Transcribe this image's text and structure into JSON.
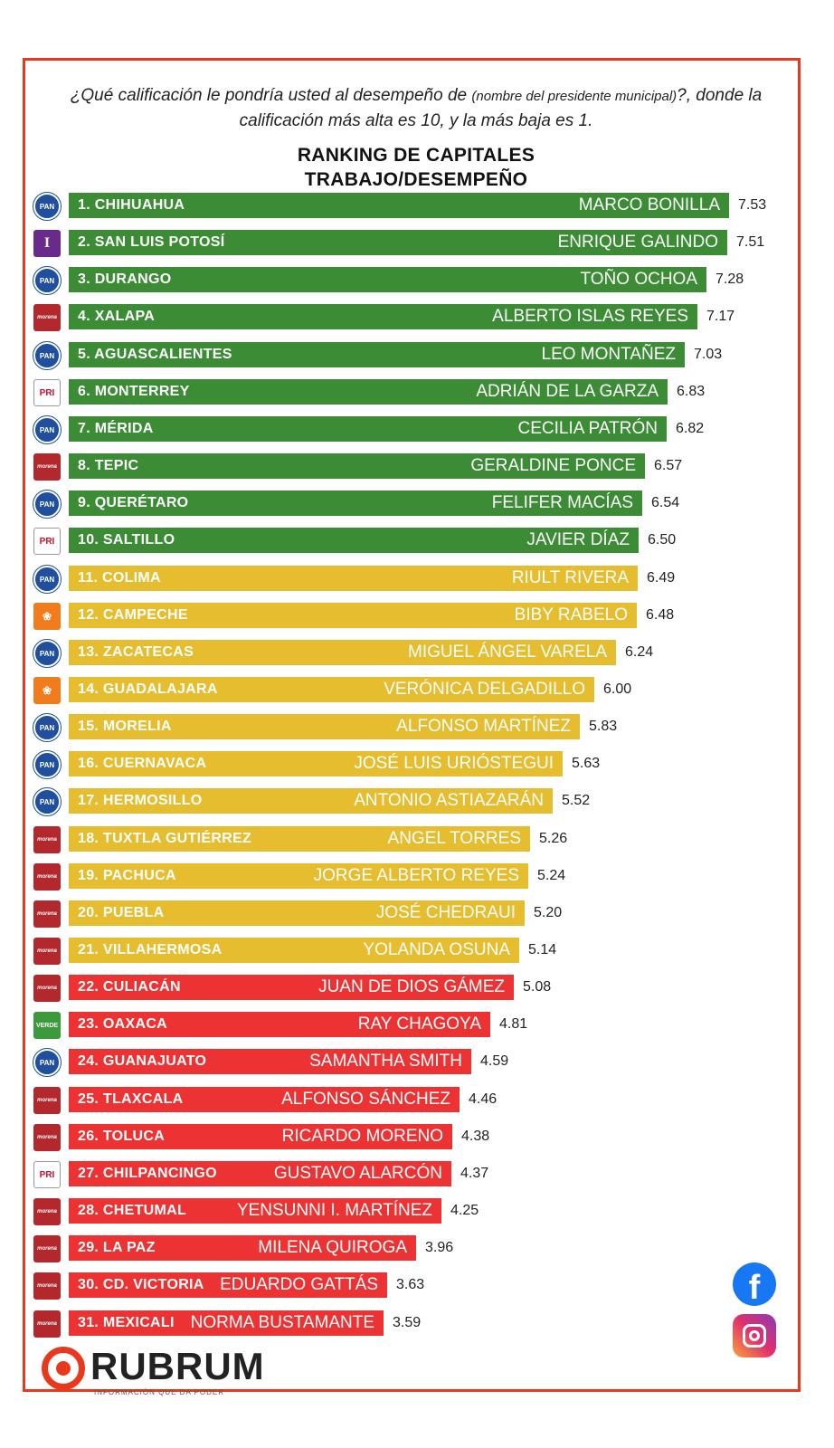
{
  "question": {
    "part1": "¿Qué calificación le pondría usted al desempeño de ",
    "part2": "(nombre del presidente municipal)",
    "part3": "?, donde la calificación más alta es 10, y la más baja es 1."
  },
  "title_line1": "RANKING DE CAPITALES",
  "title_line2": "TRABAJO/DESEMPEÑO",
  "colors": {
    "green": "#3b8c35",
    "yellow": "#e6bd2e",
    "red": "#ec3232",
    "frame": "#e8391f"
  },
  "chart_data": {
    "type": "bar",
    "orientation": "horizontal",
    "title": "RANKING DE CAPITALES TRABAJO/DESEMPEÑO",
    "xlim": [
      0,
      10
    ],
    "rows": [
      {
        "label": "1. CHIHUAHUA",
        "mayor": "MARCO BONILLA",
        "value": 7.53,
        "display": "7.53",
        "party": "PAN",
        "color": "green"
      },
      {
        "label": "2. SAN LUIS POTOSÍ",
        "mayor": "ENRIQUE GALINDO",
        "value": 7.51,
        "display": "7.51",
        "party": "I",
        "color": "green"
      },
      {
        "label": "3. DURANGO",
        "mayor": "TOÑO OCHOA",
        "value": 7.28,
        "display": "7.28",
        "party": "PAN",
        "color": "green"
      },
      {
        "label": "4. XALAPA",
        "mayor": "ALBERTO ISLAS REYES",
        "value": 7.17,
        "display": "7.17",
        "party": "morena",
        "color": "green"
      },
      {
        "label": "5. AGUASCALIENTES",
        "mayor": "LEO MONTAÑEZ",
        "value": 7.03,
        "display": "7.03",
        "party": "PAN",
        "color": "green"
      },
      {
        "label": "6. MONTERREY",
        "mayor": "ADRIÁN DE LA GARZA",
        "value": 6.83,
        "display": "6.83",
        "party": "PRI",
        "color": "green"
      },
      {
        "label": "7. MÉRIDA",
        "mayor": "CECILIA PATRÓN",
        "value": 6.82,
        "display": "6.82",
        "party": "PAN",
        "color": "green"
      },
      {
        "label": "8. TEPIC",
        "mayor": "GERALDINE PONCE",
        "value": 6.57,
        "display": "6.57",
        "party": "morena",
        "color": "green"
      },
      {
        "label": "9. QUERÉTARO",
        "mayor": "FELIFER MACÍAS",
        "value": 6.54,
        "display": "6.54",
        "party": "PAN",
        "color": "green"
      },
      {
        "label": "10. SALTILLO",
        "mayor": "JAVIER DÍAZ",
        "value": 6.5,
        "display": "6.50",
        "party": "PRI",
        "color": "green"
      },
      {
        "label": "11. COLIMA",
        "mayor": "RIULT RIVERA",
        "value": 6.49,
        "display": "6.49",
        "party": "PAN",
        "color": "yellow"
      },
      {
        "label": "12. CAMPECHE",
        "mayor": "BIBY RABELO",
        "value": 6.48,
        "display": "6.48",
        "party": "MC",
        "color": "yellow"
      },
      {
        "label": "13. ZACATECAS",
        "mayor": "MIGUEL ÁNGEL VARELA",
        "value": 6.24,
        "display": "6.24",
        "party": "PAN",
        "color": "yellow"
      },
      {
        "label": "14. GUADALAJARA",
        "mayor": "VERÓNICA DELGADILLO",
        "value": 6.0,
        "display": "6.00",
        "party": "MC",
        "color": "yellow"
      },
      {
        "label": "15. MORELIA",
        "mayor": "ALFONSO MARTÍNEZ",
        "value": 5.83,
        "display": "5.83",
        "party": "PAN",
        "color": "yellow"
      },
      {
        "label": "16. CUERNAVACA",
        "mayor": "JOSÉ LUIS URIÓSTEGUI",
        "value": 5.63,
        "display": "5.63",
        "party": "PAN",
        "color": "yellow"
      },
      {
        "label": "17. HERMOSILLO",
        "mayor": "ANTONIO ASTIAZARÁN",
        "value": 5.52,
        "display": "5.52",
        "party": "PAN",
        "color": "yellow"
      },
      {
        "label": "18. TUXTLA GUTIÉRREZ",
        "mayor": "ANGEL TORRES",
        "value": 5.26,
        "display": "5.26",
        "party": "morena",
        "color": "yellow"
      },
      {
        "label": "19. PACHUCA",
        "mayor": "JORGE ALBERTO REYES",
        "value": 5.24,
        "display": "5.24",
        "party": "morena",
        "color": "yellow"
      },
      {
        "label": "20. PUEBLA",
        "mayor": "JOSÉ CHEDRAUI",
        "value": 5.2,
        "display": "5.20",
        "party": "morena",
        "color": "yellow"
      },
      {
        "label": "21. VILLAHERMOSA",
        "mayor": "YOLANDA OSUNA",
        "value": 5.14,
        "display": "5.14",
        "party": "morena",
        "color": "yellow"
      },
      {
        "label": "22. CULIACÁN",
        "mayor": "JUAN DE DIOS GÁMEZ",
        "value": 5.08,
        "display": "5.08",
        "party": "morena",
        "color": "red"
      },
      {
        "label": "23. OAXACA",
        "mayor": "RAY CHAGOYA",
        "value": 4.81,
        "display": "4.81",
        "party": "VERDE",
        "color": "red"
      },
      {
        "label": "24. GUANAJUATO",
        "mayor": "SAMANTHA SMITH",
        "value": 4.59,
        "display": "4.59",
        "party": "PAN",
        "color": "red"
      },
      {
        "label": "25. TLAXCALA",
        "mayor": "ALFONSO SÁNCHEZ",
        "value": 4.46,
        "display": "4.46",
        "party": "morena",
        "color": "red"
      },
      {
        "label": "26. TOLUCA",
        "mayor": "RICARDO MORENO",
        "value": 4.38,
        "display": "4.38",
        "party": "morena",
        "color": "red"
      },
      {
        "label": "27. CHILPANCINGO",
        "mayor": "GUSTAVO ALARCÓN",
        "value": 4.37,
        "display": "4.37",
        "party": "PRI",
        "color": "red"
      },
      {
        "label": "28. CHETUMAL",
        "mayor": "YENSUNNI I. MARTÍNEZ",
        "value": 4.25,
        "display": "4.25",
        "party": "morena",
        "color": "red"
      },
      {
        "label": "29. LA PAZ",
        "mayor": "MILENA QUIROGA",
        "value": 3.96,
        "display": "3.96",
        "party": "morena",
        "color": "red"
      },
      {
        "label": "30. CD. VICTORIA",
        "mayor": "EDUARDO GATTÁS",
        "value": 3.63,
        "display": "3.63",
        "party": "morena",
        "color": "red"
      },
      {
        "label": "31. MEXICALI",
        "mayor": "NORMA BUSTAMANTE",
        "value": 3.59,
        "display": "3.59",
        "party": "morena",
        "color": "red"
      }
    ]
  },
  "brand": {
    "name": "RUBRUM",
    "tagline": "INFORMACIÓN QUE DA PODER"
  },
  "social": {
    "facebook_glyph": "f"
  }
}
